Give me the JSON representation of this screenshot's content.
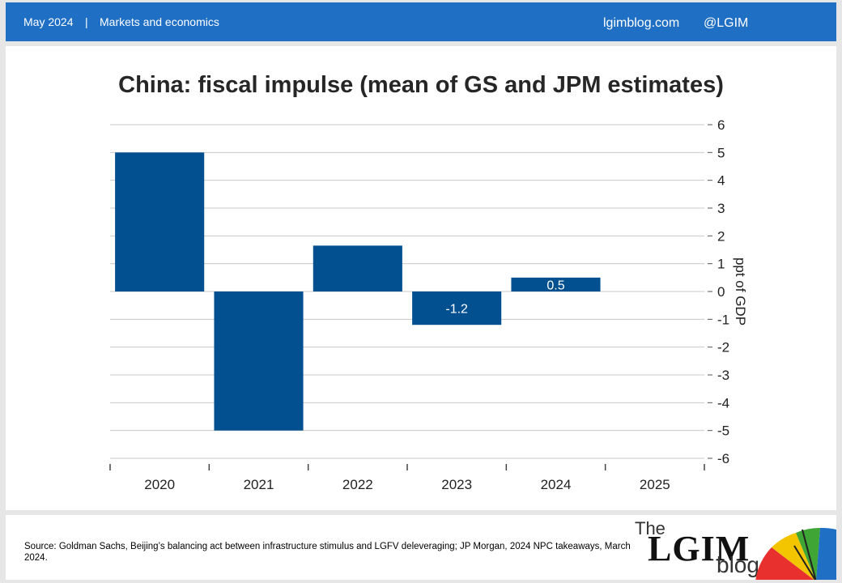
{
  "header": {
    "date": "May 2024",
    "separator": "|",
    "section": "Markets and economics",
    "site": "lgimblog.com",
    "handle": "@LGIM"
  },
  "colors": {
    "header_bg": "#1f6fc5",
    "bar": "#02508f",
    "grid": "#c8c8c8"
  },
  "chart_data": {
    "type": "bar",
    "title": "China: fiscal impulse (mean of GS and JPM estimates)",
    "ylabel": "ppt of GDP",
    "categories": [
      "2020",
      "2021",
      "2022",
      "2023",
      "2024",
      "2025"
    ],
    "values": [
      5.0,
      -5.0,
      1.65,
      -1.2,
      0.5,
      null
    ],
    "data_labels": [
      null,
      null,
      null,
      "-1.2",
      "0.5",
      null
    ],
    "ylim": [
      -6,
      6
    ],
    "yticks": [
      "6",
      "5",
      "4",
      "3",
      "2",
      "1",
      "0",
      "-1",
      "-2",
      "-3",
      "-4",
      "-5",
      "-6"
    ],
    "yaxis_side": "right",
    "grid": true
  },
  "footer": {
    "source": "Source: Goldman Sachs, Beijing’s balancing act between infrastructure stimulus and LGFV deleveraging; JP Morgan, 2024 NPC takeaways, March 2024.",
    "logo_the": "The",
    "logo_lgim": "LGIM",
    "logo_blog": "blog",
    "umbrella_icon": "umbrella-icon"
  }
}
